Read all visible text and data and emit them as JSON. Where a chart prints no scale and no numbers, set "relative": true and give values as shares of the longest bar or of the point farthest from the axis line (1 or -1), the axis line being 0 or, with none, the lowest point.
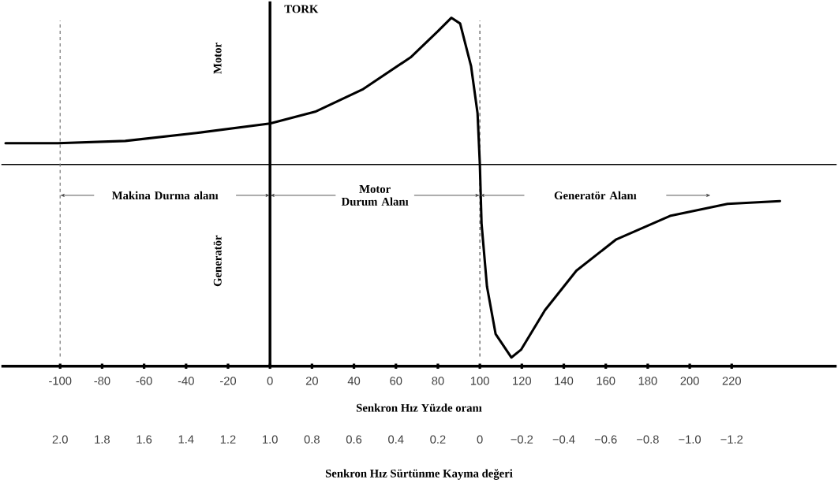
{
  "chart_data": {
    "type": "line",
    "relative": true,
    "ylabel": "TORK",
    "xlabel": "Senkron Hız Yüzde oranı",
    "x2label": "Senkron Hız Sürtünme Kayma değeri",
    "xlim": [
      -128,
      270
    ],
    "xticks": [
      -100,
      -80,
      -60,
      -40,
      -20,
      0,
      20,
      40,
      60,
      80,
      100,
      120,
      140,
      160,
      180,
      200,
      220
    ],
    "x2lim": [
      2.28,
      -1.7
    ],
    "x2ticks": [
      {
        "value": 2,
        "label": "2.0"
      },
      1.8,
      1.6,
      1.4,
      1.2,
      {
        "value": 1,
        "label": "1.0"
      },
      0.8,
      0.6,
      0.4,
      0.2,
      0,
      {
        "value": -0.2,
        "label": "−0.2"
      },
      {
        "value": -0.4,
        "label": "−0.4"
      },
      {
        "value": -0.6,
        "label": "−0.6"
      },
      {
        "value": -0.8,
        "label": "−0.8"
      },
      {
        "value": -1,
        "label": "−1.0"
      },
      {
        "value": -1.2,
        "label": "−1.2"
      }
    ],
    "x": [
      -126,
      -101,
      -69,
      -35,
      0,
      21.5,
      44,
      67,
      80,
      86.4,
      90.6,
      95.8,
      98.9,
      100,
      100.8,
      103.4,
      107.5,
      115,
      119.6,
      131,
      146,
      165,
      191,
      218,
      243
    ],
    "series": [
      {
        "color": "#000000",
        "values": [
          0.11,
          0.11,
          0.122,
          0.163,
          0.212,
          0.273,
          0.388,
          0.555,
          0.69,
          0.76,
          0.73,
          0.51,
          0.265,
          0,
          -0.306,
          -0.633,
          -0.878,
          -1,
          -0.96,
          -0.755,
          -0.55,
          -0.388,
          -0.265,
          -0.204,
          -0.19
        ]
      }
    ],
    "ref_lines": [
      {
        "axis": "x",
        "value": 100,
        "line_style": "dashed",
        "color": "#555555"
      },
      {
        "axis": "x",
        "value": -100,
        "line_style": "dashed",
        "color": "#777777"
      }
    ],
    "annotations": [
      "Motor",
      "Generatör",
      "Makina  Durma alanı",
      "Motor Durum Alanı",
      "Generatör Alanı"
    ],
    "marker": "none",
    "line_style": "solid"
  }
}
